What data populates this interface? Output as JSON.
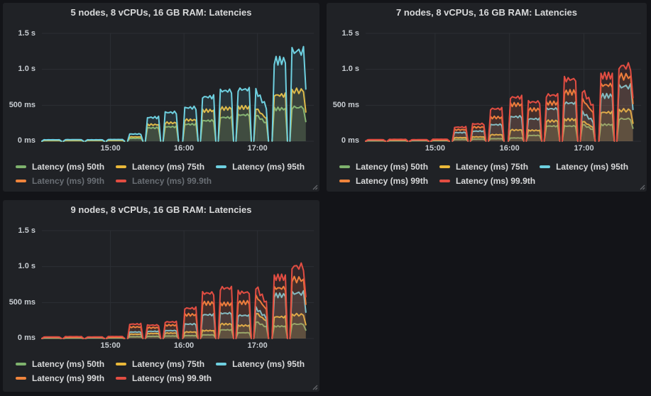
{
  "theme": {
    "page_bg": "#131418",
    "panel_bg": "#202226",
    "grid_color": "#2c2f34",
    "text_color": "#d8d9da",
    "tick_color": "#c7ccd1",
    "dim_legend_color": "#696e74"
  },
  "chart_data": [
    {
      "type": "area",
      "title": "5 nodes, 8 vCPUs, 16 GB RAM: Latencies",
      "grid": true,
      "legend_position": "bottom-left",
      "ylim_ms": [
        0,
        1500
      ],
      "y_ticks": [
        {
          "v": 0,
          "label": "0 ms"
        },
        {
          "v": 500,
          "label": "500 ms"
        },
        {
          "v": 1000,
          "label": "1.0 s"
        },
        {
          "v": 1500,
          "label": "1.5 s"
        }
      ],
      "x_unit": "minutes_after_14:00",
      "x_range": [
        4,
        226
      ],
      "x_ticks": [
        {
          "t": 60,
          "label": "15:00"
        },
        {
          "t": 120,
          "label": "16:00"
        },
        {
          "t": 180,
          "label": "17:00"
        }
      ],
      "run_windows": [
        [
          4,
          20
        ],
        [
          21.5,
          38
        ],
        [
          39.5,
          55
        ],
        [
          56.5,
          71.5
        ],
        [
          74,
          86.5
        ],
        [
          88.5,
          101
        ],
        [
          103,
          115.5
        ],
        [
          119,
          131.5
        ],
        [
          133.5,
          146
        ],
        [
          148,
          160.5
        ],
        [
          162.5,
          175
        ],
        [
          177,
          189,
          "fall"
        ],
        [
          192,
          204.5
        ],
        [
          206.5,
          219.5,
          "cut"
        ]
      ],
      "series": [
        {
          "name": "Latency (ms) 50th",
          "color": "#7EB26D",
          "hidden": false,
          "plateaus_ms": [
            8,
            8,
            9,
            9,
            40,
            185,
            200,
            235,
            285,
            330,
            365,
            390,
            450,
            470
          ]
        },
        {
          "name": "Latency (ms) 75th",
          "color": "#EAB839",
          "hidden": false,
          "plateaus_ms": [
            12,
            12,
            13,
            13,
            60,
            230,
            255,
            295,
            425,
            455,
            470,
            490,
            640,
            700
          ]
        },
        {
          "name": "Latency (ms) 95th",
          "color": "#6ED0E0",
          "hidden": false,
          "plateaus_ms": [
            20,
            22,
            20,
            24,
            100,
            330,
            400,
            465,
            615,
            700,
            720,
            745,
            1120,
            1250
          ]
        },
        {
          "name": "Latency (ms) 99th",
          "color": "#EF843C",
          "hidden": true,
          "plateaus_ms": []
        },
        {
          "name": "Latency (ms) 99.9th",
          "color": "#E24D42",
          "hidden": true,
          "plateaus_ms": []
        }
      ]
    },
    {
      "type": "area",
      "title": "7 nodes, 8 vCPUs, 16 GB RAM: Latencies",
      "grid": true,
      "legend_position": "bottom-left",
      "ylim_ms": [
        0,
        1500
      ],
      "y_ticks": [
        {
          "v": 0,
          "label": "0 ms"
        },
        {
          "v": 500,
          "label": "500 ms"
        },
        {
          "v": 1000,
          "label": "1.0 s"
        },
        {
          "v": 1500,
          "label": "1.5 s"
        }
      ],
      "x_unit": "minutes_after_14:00",
      "x_range": [
        4,
        226
      ],
      "x_ticks": [
        {
          "t": 60,
          "label": "15:00"
        },
        {
          "t": 120,
          "label": "16:00"
        },
        {
          "t": 180,
          "label": "17:00"
        }
      ],
      "run_windows": [
        [
          4,
          20
        ],
        [
          21.5,
          38
        ],
        [
          39.5,
          55
        ],
        [
          56.5,
          71.5
        ],
        [
          74,
          86.5
        ],
        [
          88.5,
          101
        ],
        [
          103,
          115.5
        ],
        [
          119,
          131.5
        ],
        [
          133.5,
          146
        ],
        [
          148,
          160.5
        ],
        [
          162.5,
          175
        ],
        [
          177,
          189,
          "fall"
        ],
        [
          192,
          204.5
        ],
        [
          206.5,
          219.5,
          "cut"
        ]
      ],
      "series": [
        {
          "name": "Latency (ms) 50th",
          "color": "#7EB26D",
          "hidden": false,
          "plateaus_ms": [
            6,
            6,
            7,
            7,
            25,
            30,
            35,
            45,
            80,
            210,
            210,
            250,
            230,
            310
          ]
        },
        {
          "name": "Latency (ms) 75th",
          "color": "#EAB839",
          "hidden": false,
          "plateaus_ms": [
            9,
            10,
            10,
            11,
            50,
            60,
            90,
            155,
            150,
            280,
            300,
            300,
            400,
            430
          ]
        },
        {
          "name": "Latency (ms) 95th",
          "color": "#6ED0E0",
          "hidden": false,
          "plateaus_ms": [
            13,
            14,
            13,
            15,
            120,
            140,
            230,
            340,
            310,
            450,
            530,
            430,
            630,
            760
          ]
        },
        {
          "name": "Latency (ms) 99th",
          "color": "#EF843C",
          "hidden": false,
          "plateaus_ms": [
            17,
            18,
            17,
            19,
            160,
            195,
            330,
            510,
            440,
            530,
            680,
            620,
            780,
            900
          ]
        },
        {
          "name": "Latency (ms) 99.9th",
          "color": "#E24D42",
          "hidden": false,
          "plateaus_ms": [
            22,
            26,
            22,
            28,
            195,
            240,
            450,
            610,
            545,
            640,
            860,
            760,
            910,
            1040
          ]
        }
      ]
    },
    {
      "type": "area",
      "title": "9 nodes, 8 vCPUs, 16 GB RAM: Latencies",
      "grid": true,
      "legend_position": "bottom-left",
      "ylim_ms": [
        0,
        1500
      ],
      "y_ticks": [
        {
          "v": 0,
          "label": "0 ms"
        },
        {
          "v": 500,
          "label": "500 ms"
        },
        {
          "v": 1000,
          "label": "1.0 s"
        },
        {
          "v": 1500,
          "label": "1.5 s"
        }
      ],
      "x_unit": "minutes_after_14:00",
      "x_range": [
        4,
        226
      ],
      "x_ticks": [
        {
          "t": 60,
          "label": "15:00"
        },
        {
          "t": 120,
          "label": "16:00"
        },
        {
          "t": 180,
          "label": "17:00"
        }
      ],
      "run_windows": [
        [
          4,
          20
        ],
        [
          21.5,
          38
        ],
        [
          39.5,
          55
        ],
        [
          56.5,
          71.5
        ],
        [
          74,
          86.5
        ],
        [
          88.5,
          101
        ],
        [
          103,
          115.5
        ],
        [
          119,
          131.5
        ],
        [
          133.5,
          146
        ],
        [
          148,
          160.5
        ],
        [
          162.5,
          175
        ],
        [
          177,
          189,
          "fall"
        ],
        [
          192,
          204.5
        ],
        [
          206.5,
          219.5,
          "cut"
        ]
      ],
      "series": [
        {
          "name": "Latency (ms) 50th",
          "color": "#7EB26D",
          "hidden": false,
          "plateaus_ms": [
            6,
            6,
            7,
            7,
            25,
            30,
            35,
            40,
            50,
            120,
            80,
            250,
            170,
            200
          ]
        },
        {
          "name": "Latency (ms) 75th",
          "color": "#EAB839",
          "hidden": false,
          "plateaus_ms": [
            9,
            10,
            10,
            11,
            60,
            70,
            75,
            90,
            110,
            200,
            180,
            380,
            300,
            330
          ]
        },
        {
          "name": "Latency (ms) 95th",
          "color": "#6ED0E0",
          "hidden": false,
          "plateaus_ms": [
            13,
            14,
            13,
            15,
            90,
            100,
            110,
            200,
            330,
            350,
            320,
            450,
            600,
            630
          ]
        },
        {
          "name": "Latency (ms) 99th",
          "color": "#EF843C",
          "hidden": false,
          "plateaus_ms": [
            17,
            18,
            17,
            19,
            160,
            150,
            185,
            330,
            490,
            480,
            500,
            630,
            700,
            820
          ]
        },
        {
          "name": "Latency (ms) 99.9th",
          "color": "#E24D42",
          "hidden": false,
          "plateaus_ms": [
            22,
            26,
            22,
            28,
            200,
            185,
            230,
            420,
            630,
            700,
            640,
            770,
            850,
            1000
          ]
        }
      ]
    }
  ]
}
